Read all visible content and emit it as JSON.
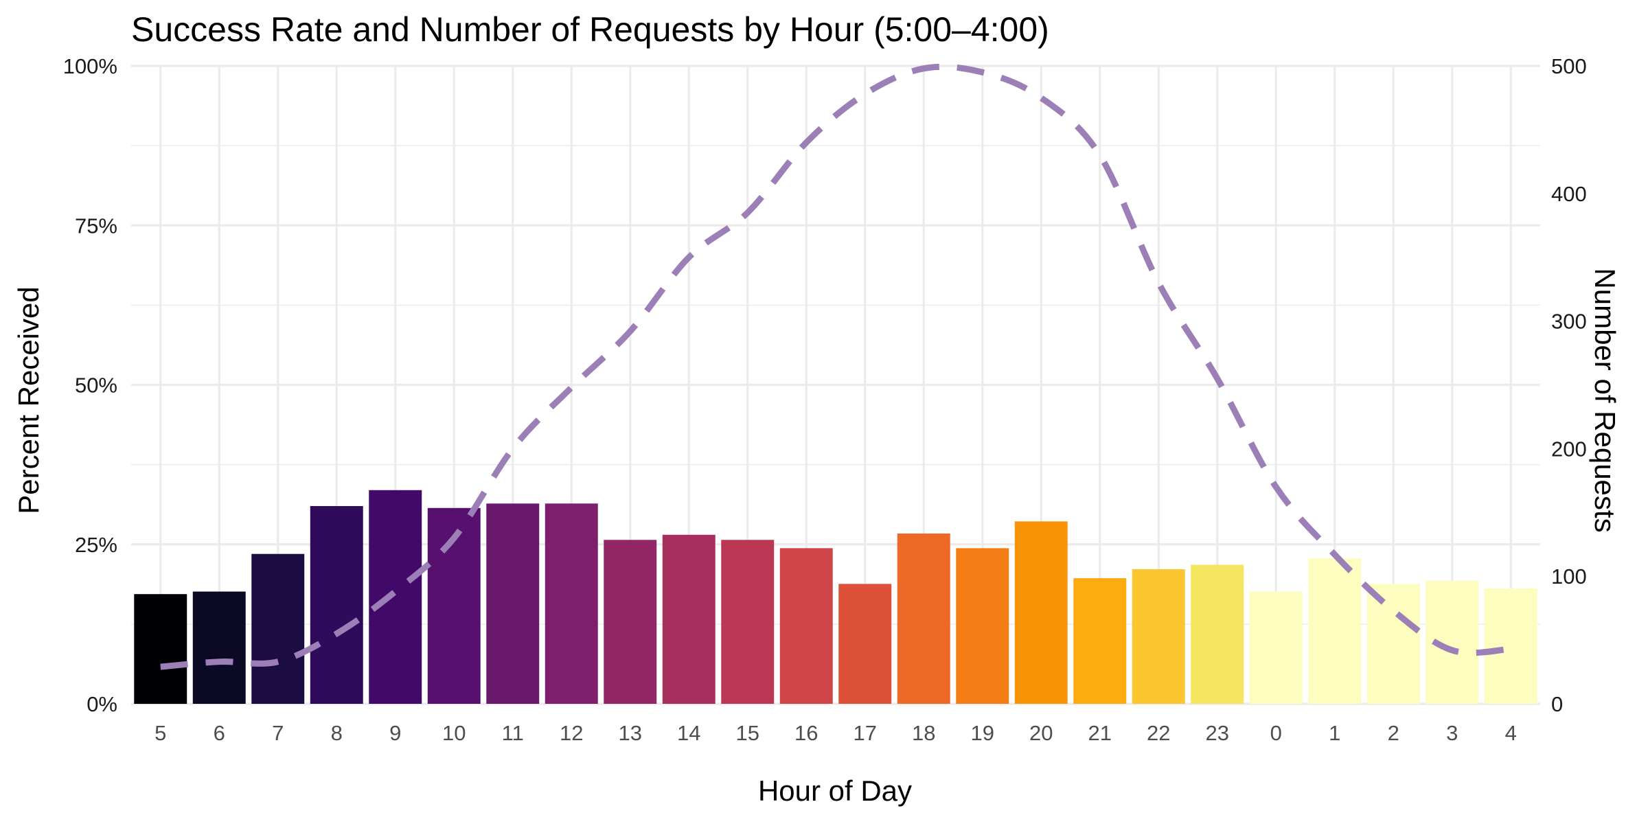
{
  "chart_data": {
    "type": "bar",
    "title": "Success Rate and Number of Requests by Hour (5:00–4:00)",
    "xlabel": "Hour of Day",
    "ylabel": "Percent Received",
    "y2label": "Number of Requests",
    "categories": [
      "5",
      "6",
      "7",
      "8",
      "9",
      "10",
      "11",
      "12",
      "13",
      "14",
      "15",
      "16",
      "17",
      "18",
      "19",
      "20",
      "21",
      "22",
      "23",
      "0",
      "1",
      "2",
      "3",
      "4"
    ],
    "ylim": [
      0,
      1
    ],
    "y_ticks": [
      0,
      0.25,
      0.5,
      0.75,
      1.0
    ],
    "y_tick_labels": [
      "0%",
      "25%",
      "50%",
      "75%",
      "100%"
    ],
    "y2lim": [
      0,
      500
    ],
    "y2_ticks": [
      0,
      100,
      200,
      300,
      400,
      500
    ],
    "y2_tick_labels": [
      "0",
      "100",
      "200",
      "300",
      "400",
      "500"
    ],
    "grid": true,
    "series": [
      {
        "type": "bar",
        "axis": "left",
        "values": [
          0.172,
          0.176,
          0.235,
          0.31,
          0.335,
          0.307,
          0.314,
          0.314,
          0.257,
          0.265,
          0.257,
          0.244,
          0.188,
          0.267,
          0.244,
          0.286,
          0.197,
          0.211,
          0.218,
          0.176,
          0.228,
          0.188,
          0.193,
          0.181
        ],
        "colors": [
          "#000004",
          "#0b0924",
          "#1b0c41",
          "#300a5b",
          "#420a68",
          "#57106e",
          "#6a176e",
          "#7e1e6c",
          "#932667",
          "#a82e5f",
          "#bc3754",
          "#cf4446",
          "#dd513a",
          "#ed6925",
          "#f57d15",
          "#fa9407",
          "#fcac11",
          "#fbc62f",
          "#f3e55d",
          "#fcfdbf",
          "#fcfdbf",
          "#fcfdbf",
          "#fcfdbf",
          "#fcfdbf"
        ]
      },
      {
        "type": "line",
        "axis": "right",
        "style": "dashed",
        "color": "#9b7fb6",
        "values": [
          29,
          33,
          33,
          55,
          88,
          130,
          200,
          248,
          292,
          350,
          385,
          440,
          478,
          498,
          495,
          475,
          430,
          330,
          255,
          170,
          117,
          73,
          42,
          43
        ]
      }
    ]
  }
}
